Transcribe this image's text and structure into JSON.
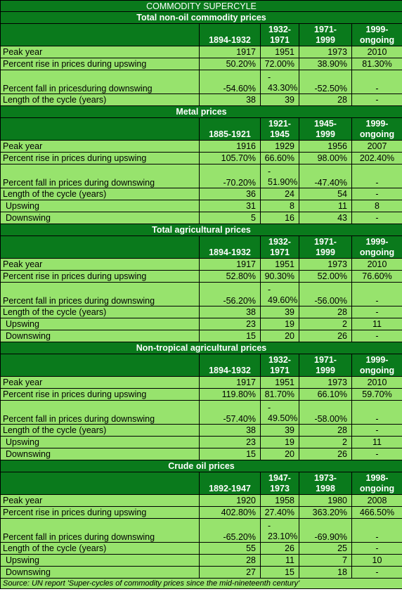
{
  "title": "COMMODITY SUPERCYLE",
  "sections": [
    {
      "name": "Total non-oil commodity prices",
      "periods": [
        "1894-1932",
        "1932-\n1971",
        "1971-\n1999",
        "1999-\nongoing"
      ],
      "rows": [
        {
          "label": "Peak year",
          "values": [
            "1917",
            "1951",
            "1973",
            "2010"
          ]
        },
        {
          "label": "Percent rise in prices during upswing",
          "values": [
            "50.20%",
            "72.00%",
            "38.90%",
            "81.30%"
          ]
        },
        {
          "label": "Percent fall in pricesduring downswing",
          "values": [
            "-54.60%",
            "-\n43.30%",
            "-52.50%",
            "-"
          ],
          "tall": true
        },
        {
          "label": "Length of the cycle (years)",
          "values": [
            "38",
            "39",
            "28",
            "-"
          ]
        }
      ]
    },
    {
      "name": "Metal prices",
      "periods": [
        "1885-1921",
        "1921-\n1945",
        "1945-\n1999",
        "1999-\nongoing"
      ],
      "rows": [
        {
          "label": "Peak year",
          "values": [
            "1916",
            "1929",
            "1956",
            "2007"
          ]
        },
        {
          "label": "Percent rise in prices during upswing",
          "values": [
            "105.70%",
            "66.60%",
            "98.00%",
            "202.40%"
          ]
        },
        {
          "label": "Percent fall in prices during downswing",
          "values": [
            "-70.20%",
            "-\n51.90%",
            "-47.40%",
            "-"
          ],
          "tall": true
        },
        {
          "label": "Length of the cycle (years)",
          "values": [
            "36",
            "24",
            "54",
            "-"
          ]
        },
        {
          "label": "Upswing",
          "values": [
            "31",
            "8",
            "11",
            "8"
          ],
          "indent": true
        },
        {
          "label": "Downswing",
          "values": [
            "5",
            "16",
            "43",
            "-"
          ],
          "indent": true
        }
      ]
    },
    {
      "name": "Total agricultural prices",
      "periods": [
        "1894-1932",
        "1932-\n1971",
        "1971-\n1999",
        "1999-\nongoing"
      ],
      "rows": [
        {
          "label": "Peak year",
          "values": [
            "1917",
            "1951",
            "1973",
            "2010"
          ]
        },
        {
          "label": "Percent rise in prices during upswing",
          "values": [
            "52.80%",
            "90.30%",
            "52.00%",
            "76.60%"
          ]
        },
        {
          "label": "Percent fall in prices during downswing",
          "values": [
            "-56.20%",
            "-\n49.60%",
            "-56.00%",
            "-"
          ],
          "tall": true
        },
        {
          "label": "Length of the cycle (years)",
          "values": [
            "38",
            "39",
            "28",
            "-"
          ]
        },
        {
          "label": "Upswing",
          "values": [
            "23",
            "19",
            "2",
            "11"
          ],
          "indent": true
        },
        {
          "label": "Downswing",
          "values": [
            "15",
            "20",
            "26",
            "-"
          ],
          "indent": true
        }
      ]
    },
    {
      "name": "Non-tropical agricultural prices",
      "periods": [
        "1894-1932",
        "1932-\n1971",
        "1971-\n1999",
        "1999-\nongoing"
      ],
      "rows": [
        {
          "label": "Peak year",
          "values": [
            "1917",
            "1951",
            "1973",
            "2010"
          ]
        },
        {
          "label": "Percent rise in prices during upswing",
          "values": [
            "119.80%",
            "81.70%",
            "66.10%",
            "59.70%"
          ]
        },
        {
          "label": "Percent fall in prices during downswing",
          "values": [
            "-57.40%",
            "-\n49.50%",
            "-58.00%",
            "-"
          ],
          "tall": true
        },
        {
          "label": "Length of the cycle (years)",
          "values": [
            "38",
            "39",
            "28",
            "-"
          ]
        },
        {
          "label": "Upswing",
          "values": [
            "23",
            "19",
            "2",
            "11"
          ],
          "indent": true
        },
        {
          "label": "Downswing",
          "values": [
            "15",
            "20",
            "26",
            "-"
          ],
          "indent": true
        }
      ]
    },
    {
      "name": "Crude oil prices",
      "periods": [
        "1892-1947",
        "1947-\n1973",
        "1973-\n1998",
        "1998-\nongoing"
      ],
      "rows": [
        {
          "label": "Peak year",
          "values": [
            "1920",
            "1958",
            "1980",
            "2008"
          ]
        },
        {
          "label": "Percent rise in prices during upswing",
          "values": [
            "402.80%",
            "27.40%",
            "363.20%",
            "466.50%"
          ]
        },
        {
          "label": "Percent fall in prices during downswing",
          "values": [
            "-65.20%",
            "-\n23.10%",
            "-69.90%",
            "-"
          ],
          "tall": true
        },
        {
          "label": "Length of the cycle (years)",
          "values": [
            "55",
            "26",
            "25",
            "-"
          ]
        },
        {
          "label": "Upswing",
          "values": [
            "28",
            "11",
            "7",
            "10"
          ],
          "indent": true
        },
        {
          "label": "Downswing",
          "values": [
            "27",
            "15",
            "18",
            "-"
          ],
          "indent": true
        }
      ]
    }
  ],
  "source": "Source: UN report 'Super-cycles of commodity prices since the mid-nineteenth century'"
}
